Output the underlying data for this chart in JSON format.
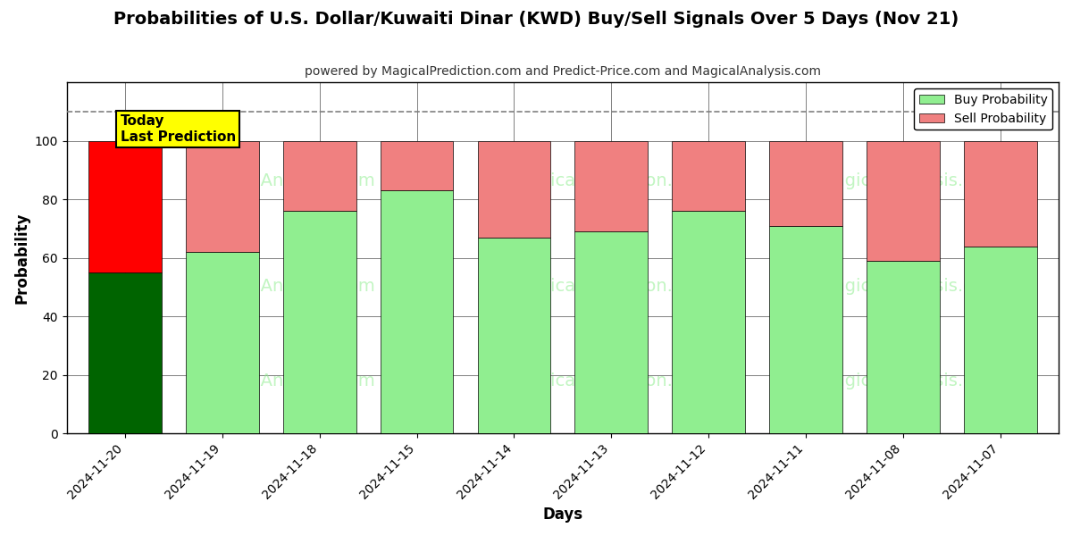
{
  "title": "Probabilities of U.S. Dollar/Kuwaiti Dinar (KWD) Buy/Sell Signals Over 5 Days (Nov 21)",
  "subtitle": "powered by MagicalPrediction.com and Predict-Price.com and MagicalAnalysis.com",
  "xlabel": "Days",
  "ylabel": "Probability",
  "categories": [
    "2024-11-20",
    "2024-11-19",
    "2024-11-18",
    "2024-11-15",
    "2024-11-14",
    "2024-11-13",
    "2024-11-12",
    "2024-11-11",
    "2024-11-08",
    "2024-11-07"
  ],
  "buy_values": [
    55,
    62,
    76,
    83,
    67,
    69,
    76,
    71,
    59,
    64
  ],
  "sell_values": [
    45,
    38,
    24,
    17,
    33,
    31,
    24,
    29,
    41,
    36
  ],
  "today_index": 0,
  "buy_color_today": "#006400",
  "sell_color_today": "#FF0000",
  "buy_color_normal": "#90EE90",
  "sell_color_normal": "#F08080",
  "today_label": "Today\nLast Prediction",
  "today_label_bg": "#FFFF00",
  "legend_buy_label": "Buy Probability",
  "legend_sell_label": "Sell Probability",
  "ylim": [
    0,
    120
  ],
  "yticks": [
    0,
    20,
    40,
    60,
    80,
    100
  ],
  "dashed_line_y": 110,
  "bar_edge_color": "#000000",
  "bar_linewidth": 0.5,
  "figsize": [
    12,
    6
  ],
  "dpi": 100,
  "bg_color": "#ffffff"
}
